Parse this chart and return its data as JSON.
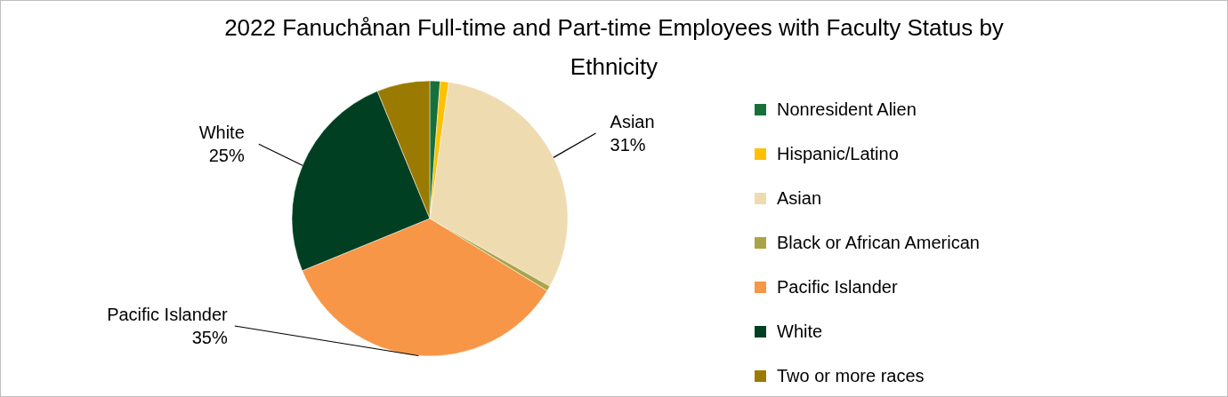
{
  "chart_data": {
    "type": "pie",
    "title": "2022 Fanuchånan Full-time and Part-time Employees with Faculty Status by Ethnicity",
    "categories": [
      "Nonresident Alien",
      "Hispanic/Latino",
      "Asian",
      "Black or African American",
      "Pacific Islander",
      "White",
      "Two or more races"
    ],
    "values": [
      1.2,
      1,
      31,
      0.6,
      35,
      25,
      6.2
    ],
    "value_labels": [
      null,
      null,
      "31%",
      null,
      "35%",
      "25%",
      null
    ],
    "colors": [
      "#17703a",
      "#ffc000",
      "#eedbb0",
      "#a9a447",
      "#f79646",
      "#003f22",
      "#9a7b00"
    ],
    "legend": "right"
  }
}
